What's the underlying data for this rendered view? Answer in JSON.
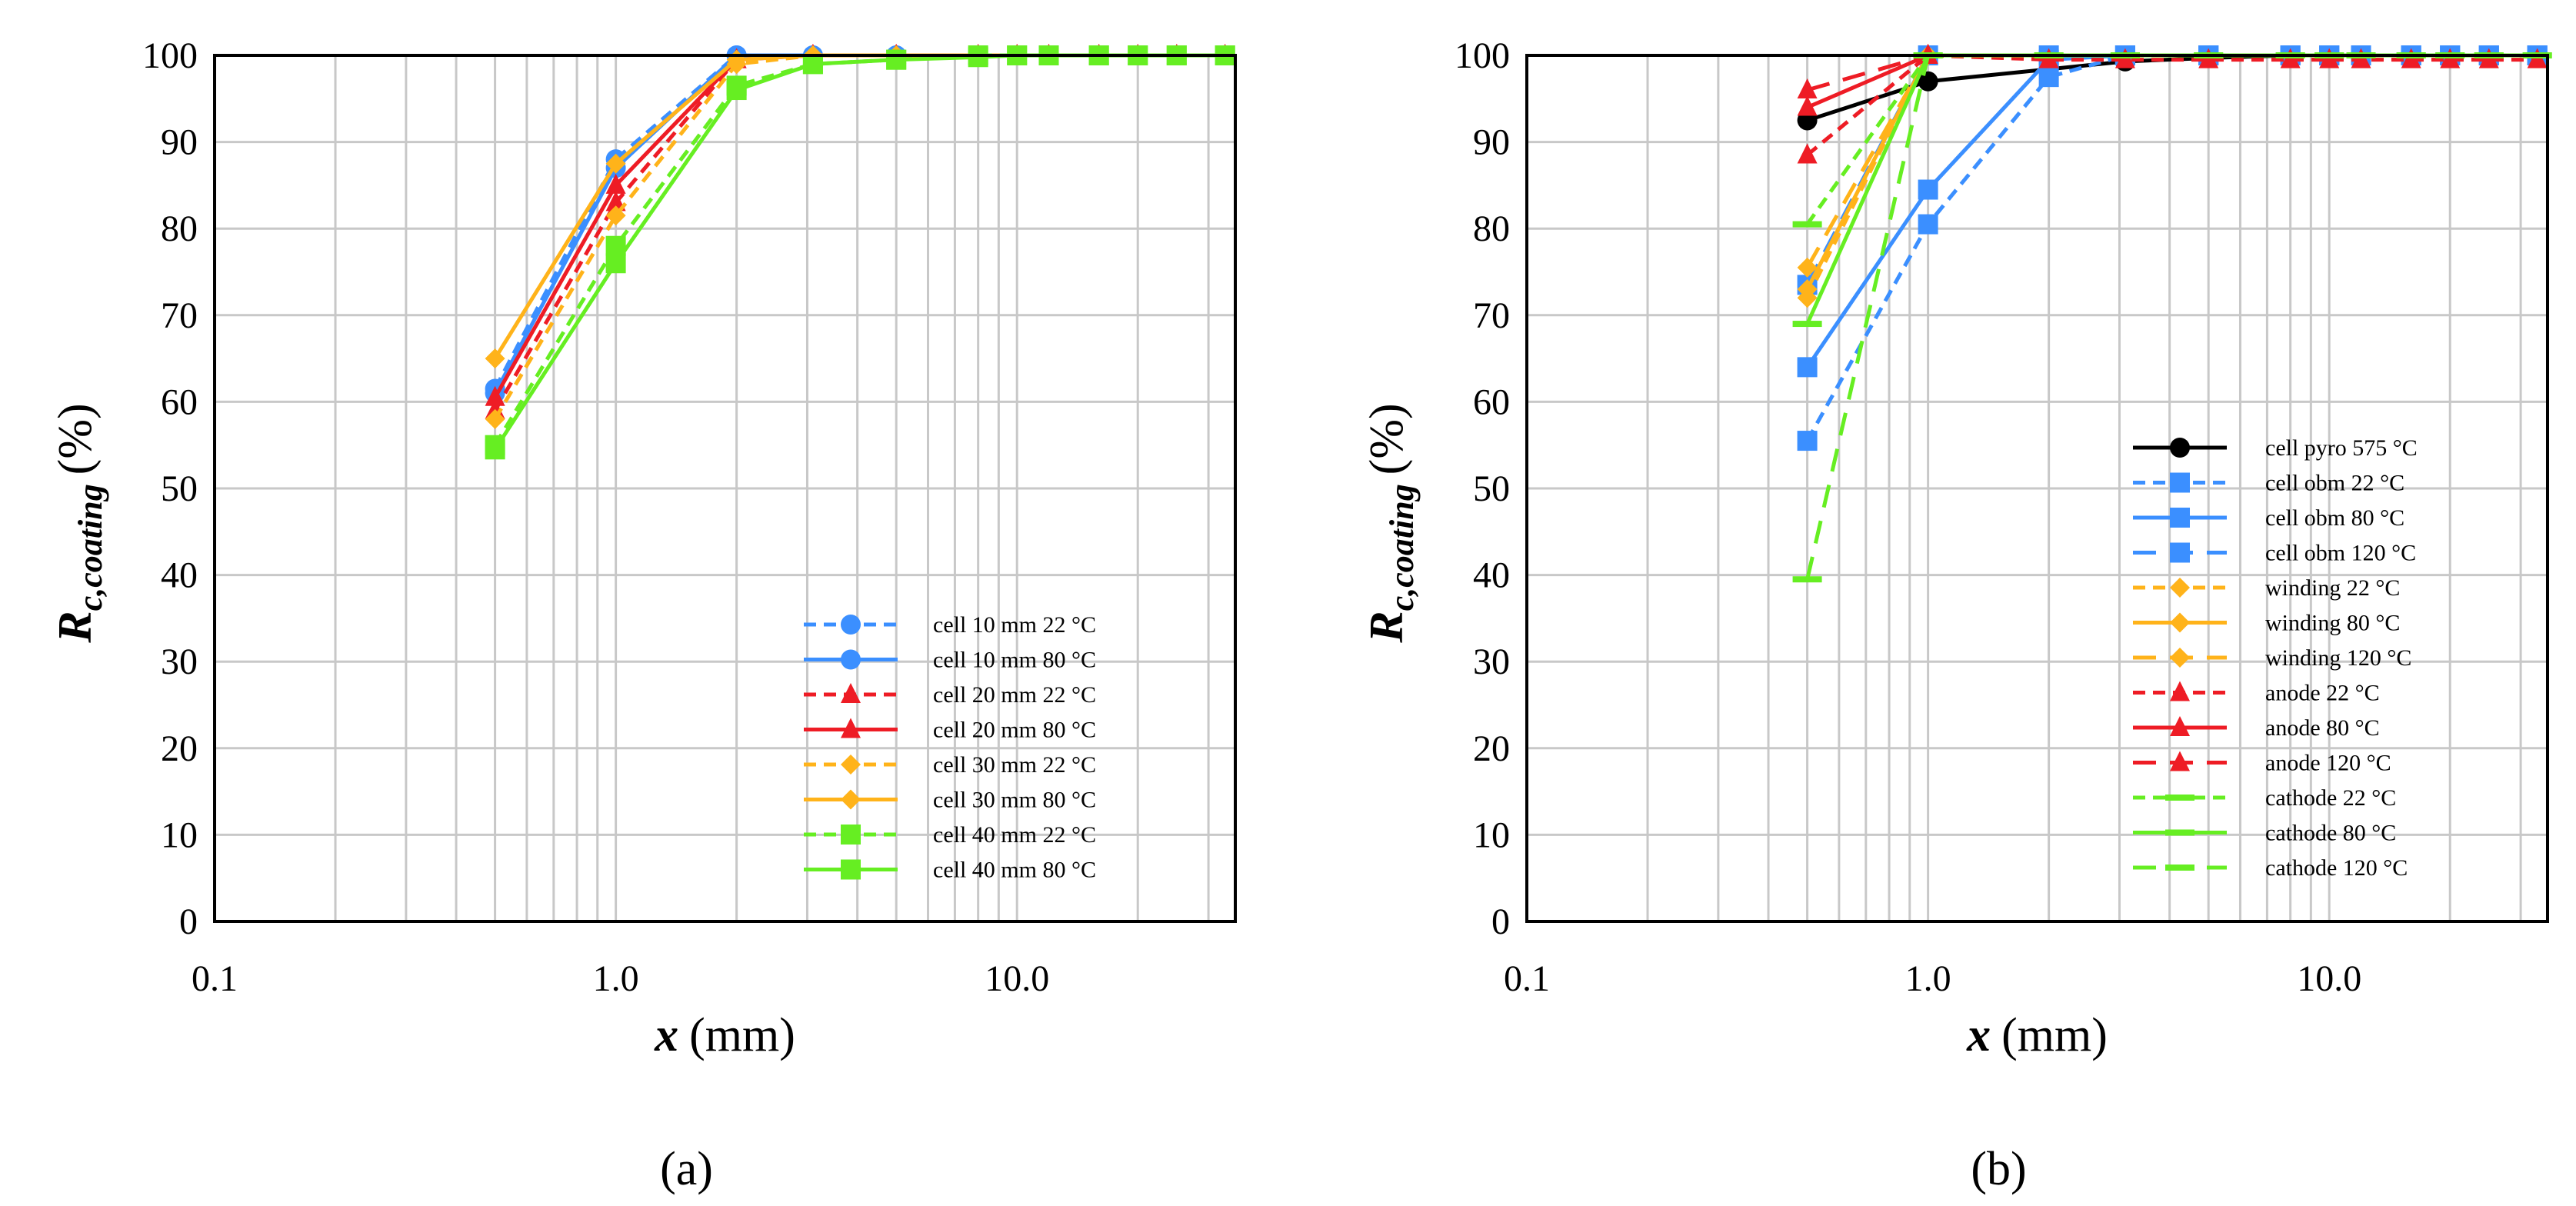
{
  "figure": {
    "panel_labels": [
      "(a)",
      "(b)"
    ]
  },
  "chart_data": [
    {
      "type": "line",
      "panel": "a",
      "xscale": "log",
      "xlim": [
        0.1,
        35
      ],
      "ylim": [
        0,
        100
      ],
      "xticks": [
        0.1,
        1.0,
        10.0
      ],
      "xtick_labels": [
        "0.1",
        "1.0",
        "10.0"
      ],
      "yticks": [
        0,
        10,
        20,
        30,
        40,
        50,
        60,
        70,
        80,
        90,
        100
      ],
      "ylabel_main": "R",
      "ylabel_sub": "c,coating",
      "ylabel_unit": "(%)",
      "xlabel_var": "x",
      "xlabel_unit": "(mm)",
      "grid": true,
      "legend_position": "bottom-right",
      "series": [
        {
          "name": "cell 10 mm 22 °C",
          "color": "#3b8fff",
          "dash": "dashed",
          "marker": "circle",
          "x": [
            0.5,
            1.0,
            2.0,
            3.1,
            5,
            8,
            10,
            12,
            16,
            20,
            25,
            33
          ],
          "y": [
            61.5,
            88,
            100,
            100,
            100,
            100,
            100,
            100,
            100,
            100,
            100,
            100
          ]
        },
        {
          "name": "cell 10 mm 80 °C",
          "color": "#3b8fff",
          "dash": "solid",
          "marker": "circle",
          "x": [
            0.5,
            1.0,
            2.0,
            3.1,
            5,
            8,
            10,
            12,
            16,
            20,
            25,
            33
          ],
          "y": [
            61,
            87,
            100,
            100,
            100,
            100,
            100,
            100,
            100,
            100,
            100,
            100
          ]
        },
        {
          "name": "cell 20 mm 22 °C",
          "color": "#ee1c25",
          "dash": "dashed",
          "marker": "triangle",
          "x": [
            0.5,
            1.0,
            2.0,
            3.1,
            5,
            8,
            10,
            12,
            16,
            20,
            25,
            33
          ],
          "y": [
            59,
            83,
            99.5,
            100,
            100,
            100,
            100,
            100,
            100,
            100,
            100,
            100
          ]
        },
        {
          "name": "cell 20 mm 80 °C",
          "color": "#ee1c25",
          "dash": "solid",
          "marker": "triangle",
          "x": [
            0.5,
            1.0,
            2.0,
            3.1,
            5,
            8,
            10,
            12,
            16,
            20,
            25,
            33
          ],
          "y": [
            60.5,
            85,
            99.5,
            100,
            100,
            100,
            100,
            100,
            100,
            100,
            100,
            100
          ]
        },
        {
          "name": "cell 30 mm 22 °C",
          "color": "#ffb31a",
          "dash": "dashed",
          "marker": "diamond",
          "x": [
            0.5,
            1.0,
            2.0,
            3.1,
            5,
            8,
            10,
            12,
            16,
            20,
            25,
            33
          ],
          "y": [
            58,
            81.5,
            99,
            100,
            100,
            100,
            100,
            100,
            100,
            100,
            100,
            100
          ]
        },
        {
          "name": "cell 30 mm 80 °C",
          "color": "#ffb31a",
          "dash": "solid",
          "marker": "diamond",
          "x": [
            0.5,
            1.0,
            2.0,
            3.1,
            5,
            8,
            10,
            12,
            16,
            20,
            25,
            33
          ],
          "y": [
            65,
            87.5,
            99.5,
            100,
            100,
            100,
            100,
            100,
            100,
            100,
            100,
            100
          ]
        },
        {
          "name": "cell 40 mm 22 °C",
          "color": "#66ee22",
          "dash": "dashed",
          "marker": "square",
          "x": [
            0.5,
            1.0,
            2.0,
            3.1,
            5,
            8,
            10,
            12,
            16,
            20,
            25,
            33
          ],
          "y": [
            55,
            78,
            96.5,
            99,
            99.5,
            100,
            100,
            100,
            100,
            100,
            100,
            100
          ]
        },
        {
          "name": "cell 40 mm 80 °C",
          "color": "#66ee22",
          "dash": "solid",
          "marker": "square",
          "x": [
            0.5,
            1.0,
            2.0,
            3.1,
            5,
            8,
            10,
            12,
            16,
            20,
            25,
            33
          ],
          "y": [
            54.5,
            76,
            96,
            99,
            99.5,
            99.8,
            100,
            100,
            100,
            100,
            100,
            100
          ]
        }
      ]
    },
    {
      "type": "line",
      "panel": "b",
      "xscale": "log",
      "xlim": [
        0.1,
        35
      ],
      "ylim": [
        0,
        100
      ],
      "xticks": [
        0.1,
        1.0,
        10.0
      ],
      "xtick_labels": [
        "0.1",
        "1.0",
        "10.0"
      ],
      "yticks": [
        0,
        10,
        20,
        30,
        40,
        50,
        60,
        70,
        80,
        90,
        100
      ],
      "ylabel_main": "R",
      "ylabel_sub": "c,coating",
      "ylabel_unit": "(%)",
      "xlabel_var": "x",
      "xlabel_unit": "(mm)",
      "grid": true,
      "legend_position": "bottom-right",
      "series": [
        {
          "name": "cell pyro 575 °C",
          "color": "#000000",
          "dash": "solid",
          "marker": "circle",
          "x": [
            0.5,
            1.0,
            3.1,
            5,
            8,
            10,
            12,
            16,
            20,
            25,
            33
          ],
          "y": [
            92.5,
            97,
            99.3,
            99.7,
            100,
            100,
            100,
            100,
            100,
            100,
            100
          ]
        },
        {
          "name": "cell obm 22 °C",
          "color": "#3b8fff",
          "dash": "dashed",
          "marker": "square",
          "x": [
            0.5,
            1.0,
            2.0,
            3.1,
            5,
            8,
            10,
            12,
            16,
            20,
            25,
            33
          ],
          "y": [
            55.5,
            80.5,
            97.5,
            100,
            100,
            100,
            100,
            100,
            100,
            100,
            100,
            100
          ]
        },
        {
          "name": "cell obm 80 °C",
          "color": "#3b8fff",
          "dash": "solid",
          "marker": "square",
          "x": [
            0.5,
            1.0,
            2.0,
            3.1,
            5,
            8,
            10,
            12,
            16,
            20,
            25,
            33
          ],
          "y": [
            64,
            84.5,
            99.5,
            100,
            100,
            100,
            100,
            100,
            100,
            100,
            100,
            100
          ]
        },
        {
          "name": "cell obm 120 °C",
          "color": "#3b8fff",
          "dash": "longdash",
          "marker": "square",
          "x": [
            0.5,
            1.0,
            2.0,
            3.1,
            5,
            8,
            10,
            12,
            16,
            20,
            25,
            33
          ],
          "y": [
            73.5,
            100,
            100,
            100,
            100,
            100,
            100,
            100,
            100,
            100,
            100,
            100
          ]
        },
        {
          "name": "winding 22 °C",
          "color": "#ffb31a",
          "dash": "dashed",
          "marker": "diamond",
          "x": [
            0.5,
            1.0
          ],
          "y": [
            72,
            100
          ]
        },
        {
          "name": "winding 80 °C",
          "color": "#ffb31a",
          "dash": "solid",
          "marker": "diamond",
          "x": [
            0.5,
            1.0
          ],
          "y": [
            73,
            100
          ]
        },
        {
          "name": "winding 120 °C",
          "color": "#ffb31a",
          "dash": "longdash",
          "marker": "diamond",
          "x": [
            0.5,
            1.0
          ],
          "y": [
            75.5,
            100
          ]
        },
        {
          "name": "anode 22 °C",
          "color": "#ee1c25",
          "dash": "dashed",
          "marker": "triangle",
          "x": [
            0.5,
            1.0,
            2.0,
            3.1,
            5,
            8,
            10,
            12,
            16,
            20,
            25,
            33
          ],
          "y": [
            88.5,
            100,
            99.5,
            99.5,
            99.5,
            99.5,
            99.5,
            99.5,
            99.5,
            99.5,
            99.5,
            99.5
          ]
        },
        {
          "name": "anode 80 °C",
          "color": "#ee1c25",
          "dash": "solid",
          "marker": "triangle",
          "x": [
            0.5,
            1.0
          ],
          "y": [
            94,
            100
          ]
        },
        {
          "name": "anode 120 °C",
          "color": "#ee1c25",
          "dash": "longdash",
          "marker": "triangle",
          "x": [
            0.5,
            1.0
          ],
          "y": [
            96,
            100
          ]
        },
        {
          "name": "cathode 22 °C",
          "color": "#66ee22",
          "dash": "dashed",
          "marker": "bar",
          "x": [
            0.5,
            1.0,
            2.0,
            3.1,
            5,
            8,
            10,
            12,
            16,
            20,
            25,
            33
          ],
          "y": [
            80.5,
            100,
            100,
            100,
            100,
            100,
            100,
            100,
            100,
            100,
            100,
            100
          ]
        },
        {
          "name": "cathode 80 °C",
          "color": "#66ee22",
          "dash": "solid",
          "marker": "bar",
          "x": [
            0.5,
            1.0,
            2.0,
            3.1,
            5,
            8,
            10,
            12,
            16,
            20,
            25,
            33
          ],
          "y": [
            69,
            100,
            100,
            100,
            100,
            100,
            100,
            100,
            100,
            100,
            100,
            100
          ]
        },
        {
          "name": "cathode 120 °C",
          "color": "#66ee22",
          "dash": "longdash",
          "marker": "bar",
          "x": [
            0.5,
            1.0
          ],
          "y": [
            39.5,
            100
          ]
        }
      ]
    }
  ]
}
